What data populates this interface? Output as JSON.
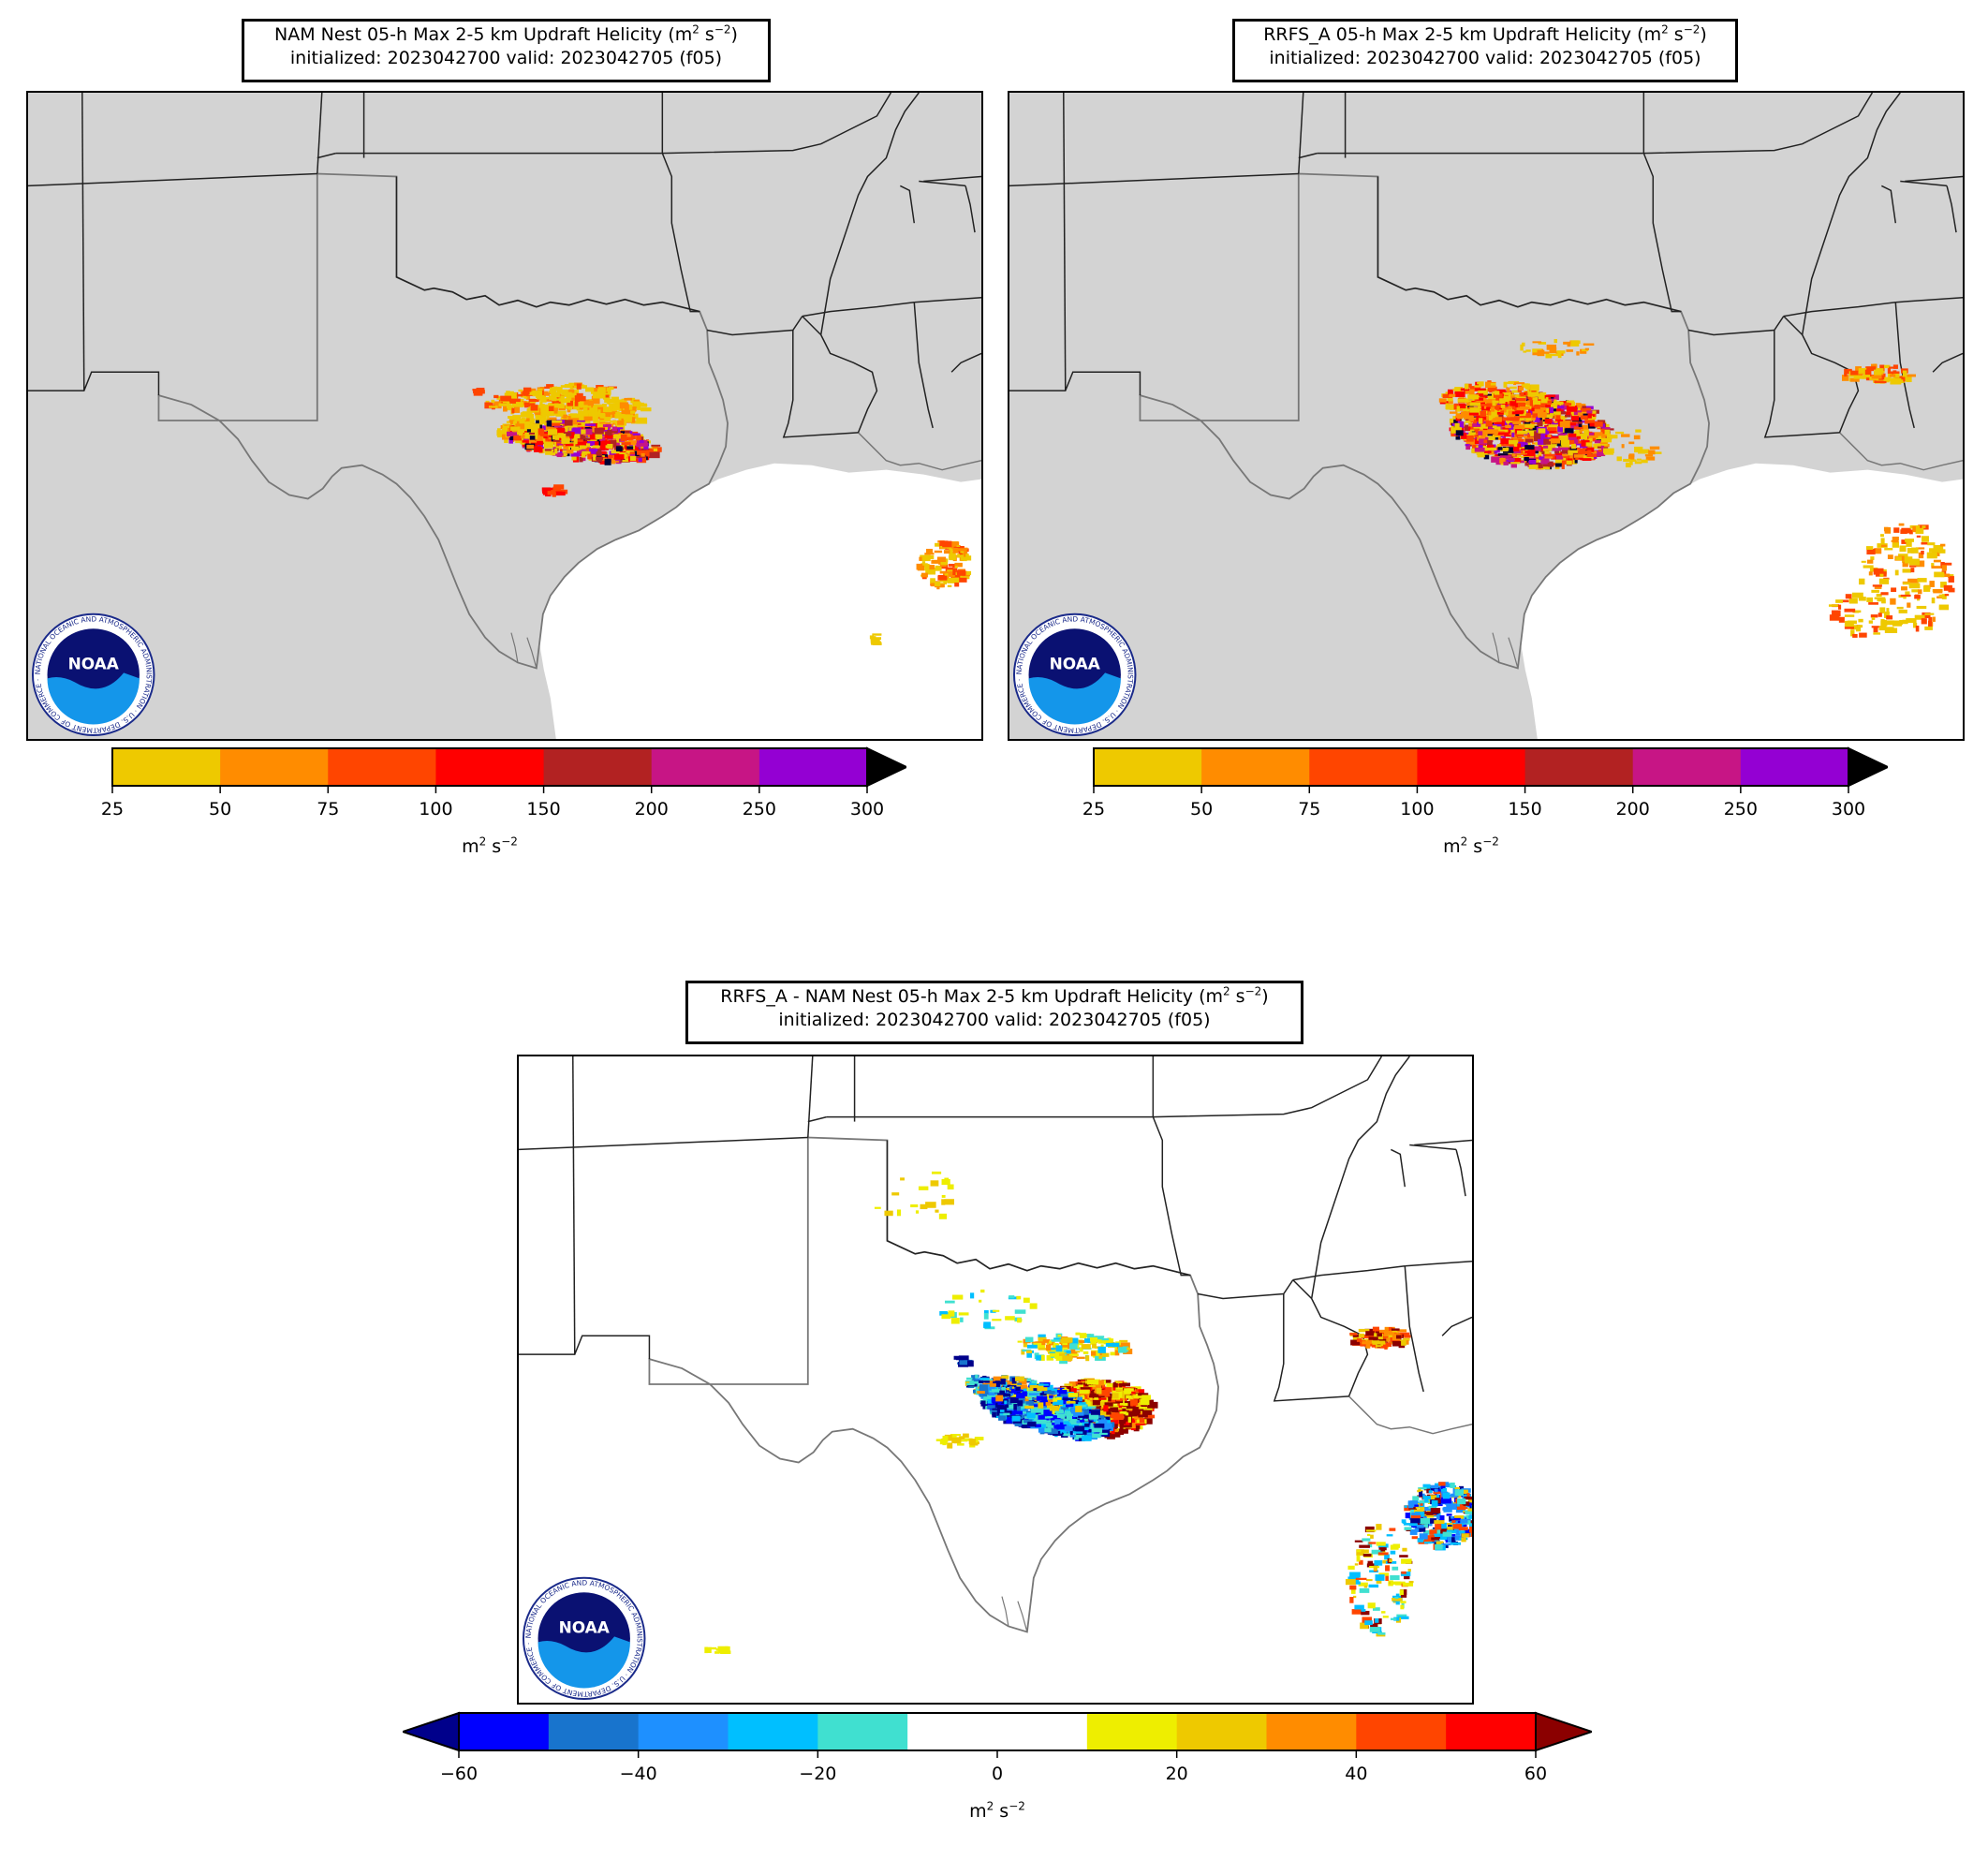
{
  "panels": [
    {
      "id": "nam",
      "title_line1_prefix": "NAM Nest 05-h Max 2-5 km Updraft Helicity (m",
      "title_sup1": "2",
      "title_mid": " s",
      "title_sup2": "−2",
      "title_suffix": ")",
      "title_line2": "initialized: 2023042700 valid: 2023042705 (f05)",
      "land_color": "#d3d3d3",
      "colorbar": {
        "ticks": [
          "25",
          "50",
          "75",
          "100",
          "150",
          "200",
          "250",
          "300"
        ],
        "colors": [
          "#eec900",
          "#ff8c00",
          "#ff4500",
          "#ff0000",
          "#b22222",
          "#c71585",
          "#9400d3"
        ],
        "extend_color": "#000000",
        "unit_base": "m",
        "unit_sup1": "2",
        "unit_mid": " s",
        "unit_sup2": "−2"
      }
    },
    {
      "id": "rrfs",
      "title_line1_prefix": "RRFS_A 05-h Max 2-5 km Updraft Helicity (m",
      "title_sup1": "2",
      "title_mid": " s",
      "title_sup2": "−2",
      "title_suffix": ")",
      "title_line2": "initialized: 2023042700 valid: 2023042705 (f05)",
      "land_color": "#d3d3d3",
      "colorbar": {
        "ticks": [
          "25",
          "50",
          "75",
          "100",
          "150",
          "200",
          "250",
          "300"
        ],
        "colors": [
          "#eec900",
          "#ff8c00",
          "#ff4500",
          "#ff0000",
          "#b22222",
          "#c71585",
          "#9400d3"
        ],
        "extend_color": "#000000",
        "unit_base": "m",
        "unit_sup1": "2",
        "unit_mid": " s",
        "unit_sup2": "−2"
      }
    },
    {
      "id": "diff",
      "title_line1_prefix": "RRFS_A - NAM Nest 05-h Max 2-5 km Updraft Helicity (m",
      "title_sup1": "2",
      "title_mid": " s",
      "title_sup2": "−2",
      "title_suffix": ")",
      "title_line2": "initialized: 2023042700 valid: 2023042705 (f05)",
      "land_color": "#ffffff",
      "colorbar": {
        "ticks": [
          "−60",
          "−40",
          "−20",
          "0",
          "20",
          "40",
          "60"
        ],
        "colors": [
          "#0000ff",
          "#1874cd",
          "#1e90ff",
          "#00bfff",
          "#40e0d0",
          "#ffffff",
          "#ffffff",
          "#eeee00",
          "#eec900",
          "#ff8c00",
          "#ff4500",
          "#ff0000"
        ],
        "extend_low_color": "#00008b",
        "extend_high_color": "#8b0000",
        "unit_base": "m",
        "unit_sup1": "2",
        "unit_mid": " s",
        "unit_sup2": "−2"
      }
    }
  ],
  "logo": {
    "text": "NOAA",
    "ring_text": "NATIONAL OCEANIC AND ATMOSPHERIC ADMINISTRATION · U.S. DEPARTMENT OF COMMERCE ·",
    "navy": "#0a1172",
    "blue": "#1496ea"
  }
}
